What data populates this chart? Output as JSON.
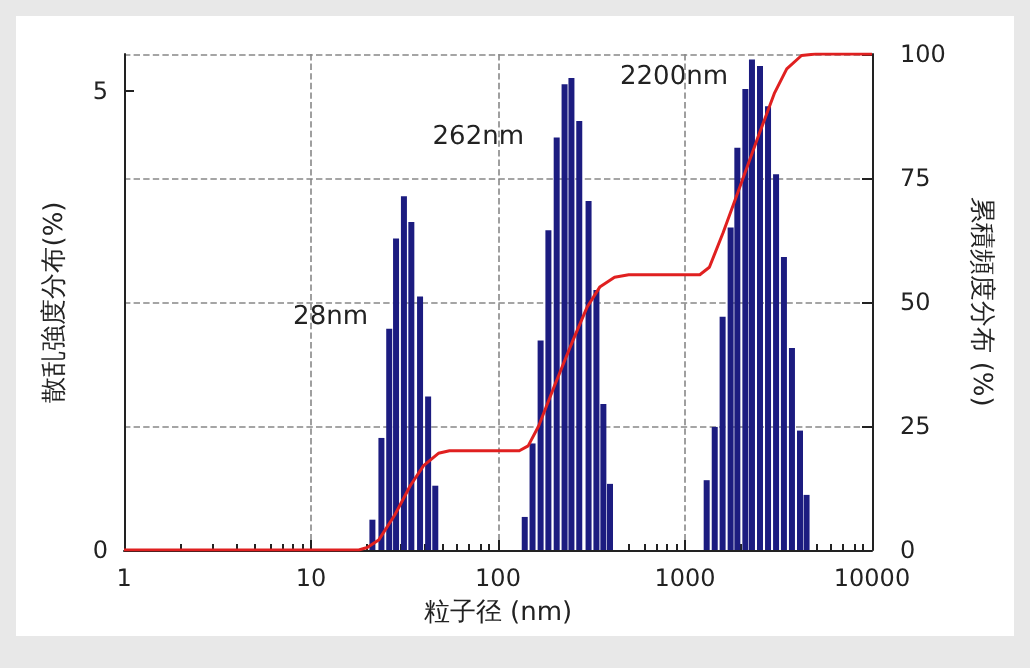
{
  "chart_data": {
    "type": "bar",
    "xlabel": "粒子径 (nm)",
    "ylabel": "散乱強度分布(%)",
    "y2label": "累積頻度分布 (%)",
    "log": "x",
    "grid": true,
    "xlim": [
      1,
      10000
    ],
    "xticks": [
      1,
      10,
      100,
      1000,
      10000
    ],
    "ylim": [
      0,
      5.4
    ],
    "yticks": [
      0,
      5
    ],
    "y2lim": [
      0,
      100
    ],
    "y2ticks": [
      0,
      25,
      50,
      75,
      100
    ],
    "annotations": [
      "28nm",
      "262nm",
      "2200nm"
    ],
    "series": [
      {
        "color": "#1c1c80",
        "x": [
          21.3,
          23.8,
          26.2,
          28.5,
          31.4,
          34.4,
          38.3,
          42.3,
          46.2,
          139,
          153,
          169,
          186,
          206,
          227,
          247,
          272,
          305,
          336,
          366,
          397,
          1306,
          1442,
          1589,
          1754,
          1905,
          2103,
          2281,
          2518,
          2780,
          3069,
          3381,
          3732,
          4121,
          4467
        ],
        "values": [
          0.33,
          1.22,
          2.41,
          3.39,
          3.85,
          3.57,
          2.76,
          1.67,
          0.7,
          0.36,
          1.16,
          2.28,
          3.48,
          4.49,
          5.07,
          5.14,
          4.67,
          3.8,
          2.83,
          1.59,
          0.72,
          0.76,
          1.34,
          2.54,
          3.51,
          4.38,
          5.02,
          5.34,
          5.27,
          4.83,
          4.09,
          3.19,
          2.2,
          1.3,
          0.6
        ]
      },
      {
        "type": "line",
        "axis": "y2",
        "color": "#e02020",
        "x": [
          1,
          18,
          20,
          23,
          28,
          34,
          40,
          48,
          55,
          130,
          145,
          165,
          200,
          250,
          300,
          350,
          420,
          500,
          1200,
          1350,
          1600,
          2000,
          2500,
          3000,
          3500,
          4200,
          5000,
          10000
        ],
        "values": [
          0,
          0,
          0.5,
          2,
          7,
          13,
          17,
          19.5,
          20,
          20,
          21,
          25,
          33,
          42,
          49,
          53,
          55,
          55.5,
          55.5,
          57,
          64,
          74,
          84,
          92,
          97,
          99.7,
          100,
          100
        ]
      }
    ]
  }
}
